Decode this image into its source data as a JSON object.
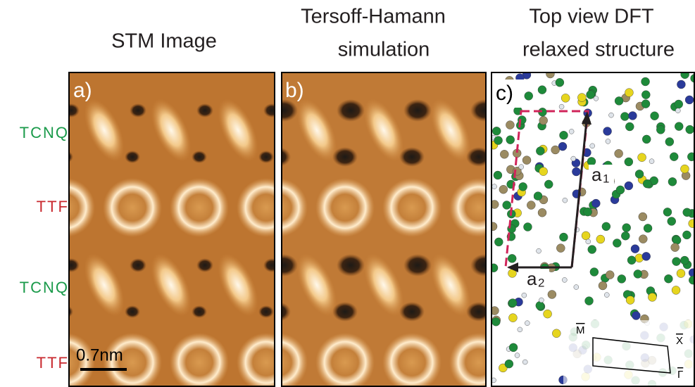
{
  "panels": [
    {
      "label": "a)",
      "title": [
        "STM Image"
      ]
    },
    {
      "label": "b)",
      "title": [
        "Tersoff-Hamann",
        "simulation"
      ]
    },
    {
      "label": "c)",
      "title": [
        "Top view DFT",
        "relaxed structure"
      ]
    }
  ],
  "row_labels": [
    {
      "text": "TCNQ",
      "color": "#1a9a4a"
    },
    {
      "text": "TTF",
      "color": "#c8282e"
    },
    {
      "text": "TCNQ",
      "color": "#1a9a4a"
    },
    {
      "text": "TTF",
      "color": "#c8282e"
    }
  ],
  "scale_bar": "0.7nm",
  "lattice": [
    {
      "base": "a",
      "sub": "1"
    },
    {
      "base": "a",
      "sub": "2"
    }
  ],
  "bz_labels": [
    "M",
    "X",
    "Γ"
  ]
}
